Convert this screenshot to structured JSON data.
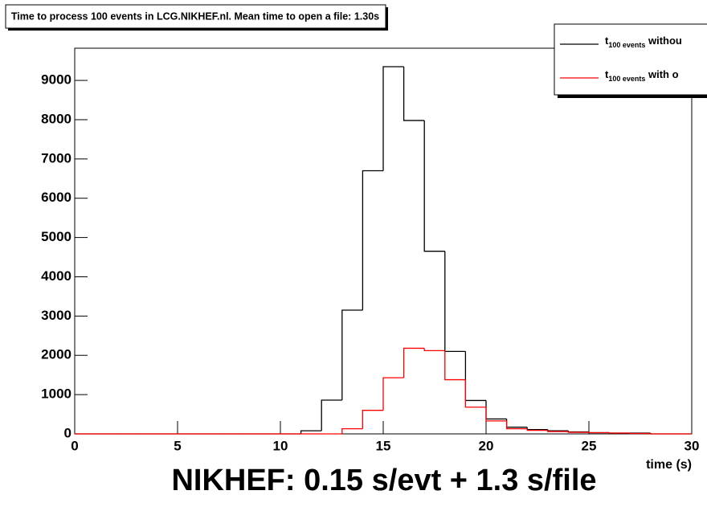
{
  "chart_data": {
    "type": "histogram",
    "title": "Time to process 100 events in LCG.NIKHEF.nl. Mean time to open a file: 1.30s",
    "x_label": "time (s)",
    "annotation": "NIKHEF: 0.15 s/evt + 1.3 s/file",
    "bins": [
      0,
      1,
      2,
      3,
      4,
      5,
      6,
      7,
      8,
      9,
      10,
      11,
      12,
      13,
      14,
      15,
      16,
      17,
      18,
      19,
      20,
      21,
      22,
      23,
      24,
      25,
      26,
      27,
      28,
      29,
      30
    ],
    "series": [
      {
        "name": "t100 events withou",
        "color": "#000000",
        "values": [
          0,
          0,
          0,
          0,
          0,
          0,
          0,
          0,
          0,
          0,
          0,
          80,
          860,
          3150,
          6700,
          9350,
          7980,
          4650,
          2100,
          850,
          380,
          170,
          110,
          80,
          50,
          30,
          20,
          20,
          0,
          0
        ]
      },
      {
        "name": "t100 events with o",
        "color": "#ff0000",
        "values": [
          0,
          0,
          0,
          0,
          0,
          0,
          0,
          0,
          0,
          0,
          0,
          0,
          0,
          130,
          600,
          1430,
          2180,
          2120,
          1380,
          680,
          330,
          130,
          90,
          60,
          40,
          30,
          20,
          10,
          0,
          0
        ]
      }
    ],
    "xlim": [
      0,
      30
    ],
    "xticks": [
      0,
      5,
      10,
      15,
      20,
      25,
      30
    ],
    "ylim": [
      0,
      9820
    ],
    "yticks": [
      0,
      1000,
      2000,
      3000,
      4000,
      5000,
      6000,
      7000,
      8000,
      9000
    ]
  }
}
